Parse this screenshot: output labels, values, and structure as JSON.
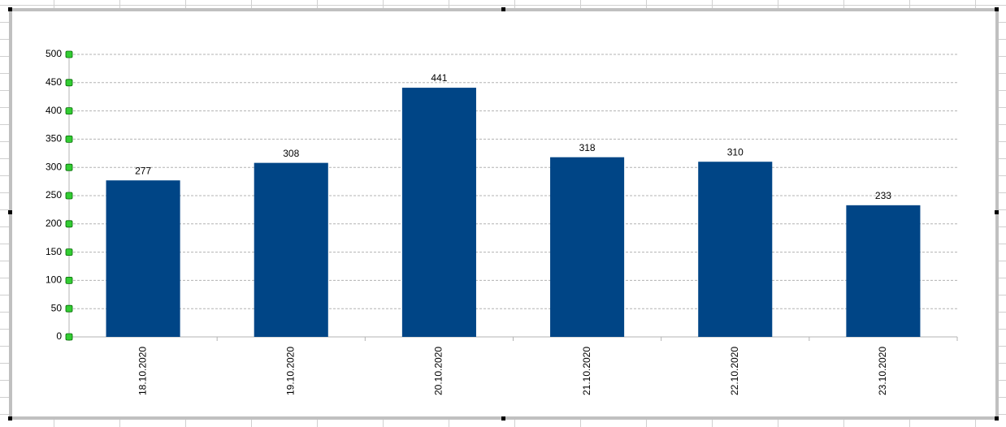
{
  "chart_data": {
    "type": "bar",
    "categories": [
      "18.10.2020",
      "19.10.2020",
      "20.10.2020",
      "21.10.2020",
      "22.10.2020",
      "23.10.2020"
    ],
    "values": [
      277,
      308,
      441,
      318,
      310,
      233
    ],
    "color": "#004586",
    "ylim": [
      0,
      500
    ],
    "yticks": [
      0,
      50,
      100,
      150,
      200,
      250,
      300,
      350,
      400,
      450,
      500
    ],
    "grid": true
  }
}
